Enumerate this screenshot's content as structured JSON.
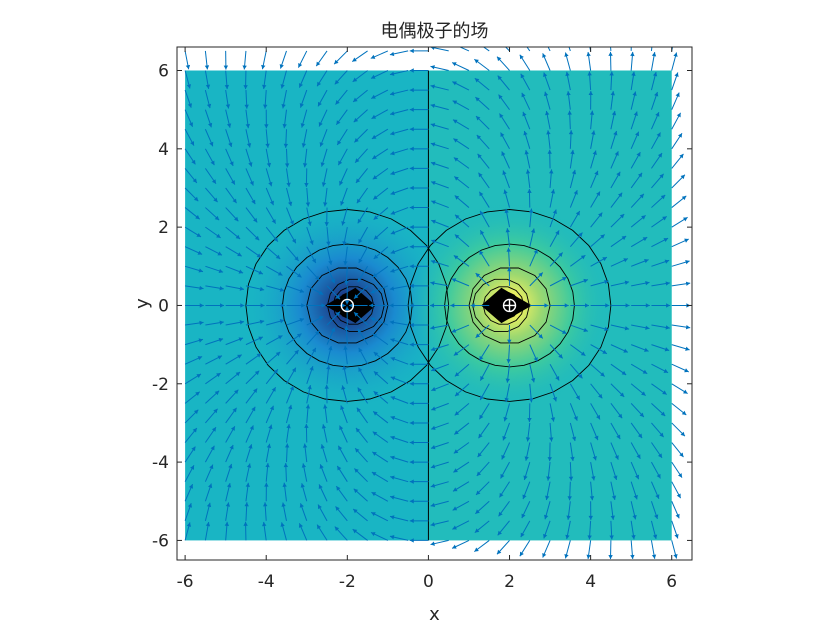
{
  "chart_data": {
    "type": "contour",
    "title": "电偶极子的场",
    "xlabel": "x",
    "ylabel": "y",
    "xlim": [
      -6.2,
      6.5
    ],
    "ylim": [
      -6.5,
      6.6
    ],
    "xticks": [
      -6,
      -4,
      -2,
      0,
      2,
      4,
      6
    ],
    "yticks": [
      -6,
      -4,
      -2,
      0,
      2,
      4,
      6
    ],
    "xtick_labels": [
      "-6",
      "-4",
      "-2",
      "0",
      "2",
      "4",
      "6"
    ],
    "ytick_labels": [
      "-6",
      "-4",
      "-2",
      "0",
      "2",
      "4",
      "6"
    ],
    "field_domain": {
      "x": [
        -6,
        6
      ],
      "y": [
        -6,
        6
      ]
    },
    "charges": [
      {
        "x": -2,
        "y": 0,
        "sign": "negative",
        "marker": "circle"
      },
      {
        "x": 2,
        "y": 0,
        "sign": "positive",
        "marker": "circle-plus"
      }
    ],
    "contour_circle_radii": [
      2.5,
      1.6,
      1.0,
      0.7,
      0.5,
      0.35,
      0.25
    ],
    "quiver_grid_step": 0.5,
    "quiver_x_range": [
      -6,
      6.5
    ],
    "quiver_y_range": [
      -6,
      6.5
    ],
    "colors": {
      "base_fill": "#19b5c4",
      "negative_tint": "#1a8ad0",
      "positive_tint": "#3ccaa0",
      "positive_core": "#c8e650",
      "negative_core": "#000000",
      "quiver": "#0072bd",
      "contour_line": "#000000",
      "axis": "#262626"
    }
  }
}
